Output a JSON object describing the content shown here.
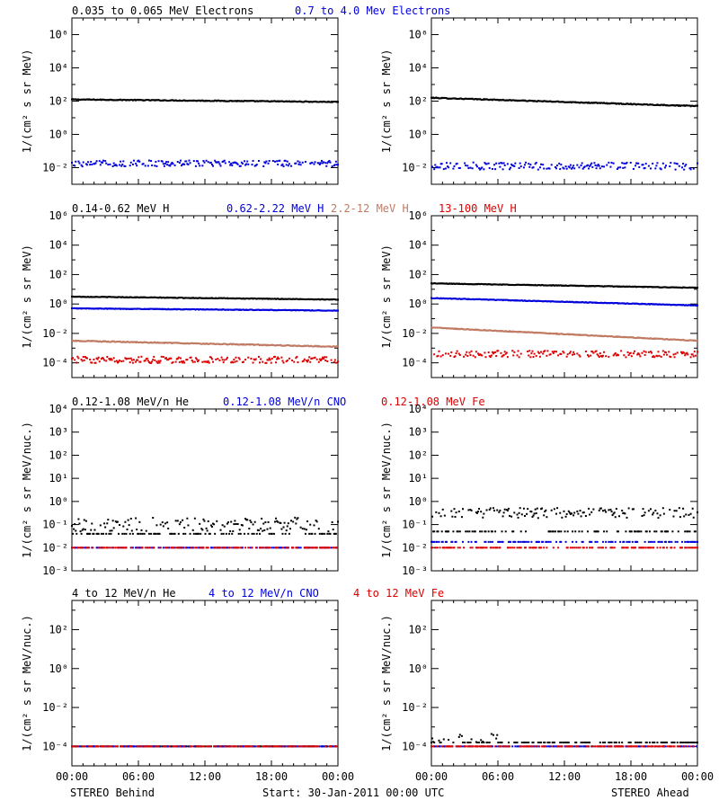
{
  "colors": {
    "black": "#000000",
    "blue": "#0000dd",
    "tan": "#c07a63",
    "red": "#dd0000"
  },
  "footer": {
    "left": "STEREO Behind",
    "center": "Start: 30-Jan-2011 00:00 UTC",
    "right": "STEREO Ahead"
  },
  "x_axis": {
    "unit": "hours",
    "range": [
      0,
      24
    ],
    "tick_values": [
      0,
      6,
      12,
      18,
      24
    ],
    "tick_labels": [
      "00:00",
      "06:00",
      "12:00",
      "18:00",
      "00:00"
    ]
  },
  "rows": [
    {
      "key": "electrons",
      "titles": [
        {
          "text": "0.035 to 0.065 MeV Electrons",
          "color": "black"
        },
        {
          "text": "0.7 to 4.0 Mev Electrons",
          "color": "blue"
        }
      ],
      "ylabel": "1/(cm² s sr MeV)",
      "tick_exponents": [
        -2,
        0,
        2,
        4,
        6
      ],
      "tick_labels": [
        "10⁻²",
        "10⁰",
        "10²",
        "10⁴",
        "10⁶"
      ],
      "ylim_log10": [
        -3.0,
        7.0
      ]
    },
    {
      "key": "protons",
      "titles": [
        {
          "text": "0.14-0.62 MeV H",
          "color": "black"
        },
        {
          "text": "0.62-2.22 MeV H",
          "color": "blue"
        },
        {
          "text": "2.2-12 MeV H",
          "color": "tan"
        },
        {
          "text": "13-100 MeV H",
          "color": "red"
        }
      ],
      "ylabel": "1/(cm² s sr MeV)",
      "tick_exponents": [
        -4,
        -2,
        0,
        2,
        4,
        6
      ],
      "tick_labels": [
        "10⁻⁴",
        "10⁻²",
        "10⁰",
        "10²",
        "10⁴",
        "10⁶"
      ],
      "ylim_log10": [
        -5.0,
        6.0
      ]
    },
    {
      "key": "low_energy_ions",
      "titles": [
        {
          "text": "0.12-1.08 MeV/n He",
          "color": "black"
        },
        {
          "text": "0.12-1.08 MeV/n CNO",
          "color": "blue"
        },
        {
          "text": "0.12-1.08 MeV Fe",
          "color": "red"
        }
      ],
      "ylabel": "1/(cm² s sr MeV/nuc.)",
      "tick_exponents": [
        -3,
        -2,
        -1,
        0,
        1,
        2,
        3,
        4
      ],
      "tick_labels": [
        "10⁻³",
        "10⁻²",
        "10⁻¹",
        "10⁰",
        "10¹",
        "10²",
        "10³",
        "10⁴"
      ],
      "ylim_log10": [
        -3.0,
        4.0
      ]
    },
    {
      "key": "high_energy_ions",
      "titles": [
        {
          "text": "4 to 12 MeV/n He",
          "color": "black"
        },
        {
          "text": "4 to 12 MeV/n CNO",
          "color": "blue"
        },
        {
          "text": "4 to 12 MeV Fe",
          "color": "red"
        }
      ],
      "ylabel": "1/(cm² s sr MeV/nuc.)",
      "tick_exponents": [
        -4,
        -2,
        0,
        2
      ],
      "tick_labels": [
        "10⁻⁴",
        "10⁻²",
        "10⁰",
        "10²"
      ],
      "ylim_log10": [
        -5.0,
        3.5
      ]
    }
  ],
  "chart_data": [
    {
      "type": "scatter",
      "panel": "STEREO Behind",
      "row": "electrons",
      "x_unit": "hours",
      "xlim": [
        0,
        24
      ],
      "series": [
        {
          "name": "0.035 to 0.065 MeV Electrons",
          "color": "black",
          "level": 2.1,
          "trend": -0.15,
          "noise": 0.05,
          "style": "line"
        },
        {
          "name": "0.7 to 4.0 Mev Electrons",
          "color": "blue",
          "level": -1.75,
          "trend": 0.0,
          "noise": 0.18,
          "style": "dots"
        }
      ]
    },
    {
      "type": "scatter",
      "panel": "STEREO Ahead",
      "row": "electrons",
      "x_unit": "hours",
      "xlim": [
        0,
        24
      ],
      "series": [
        {
          "name": "0.035 to 0.065 MeV Electrons",
          "color": "black",
          "level": 2.2,
          "trend": -0.5,
          "noise": 0.05,
          "style": "line"
        },
        {
          "name": "0.7 to 4.0 Mev Electrons",
          "color": "blue",
          "level": -1.9,
          "trend": 0.0,
          "noise": 0.22,
          "style": "dots"
        }
      ]
    },
    {
      "type": "scatter",
      "panel": "STEREO Behind",
      "row": "protons",
      "x_unit": "hours",
      "xlim": [
        0,
        24
      ],
      "series": [
        {
          "name": "0.14-0.62 MeV H",
          "color": "black",
          "level": 0.5,
          "trend": -0.2,
          "noise": 0.04,
          "style": "line"
        },
        {
          "name": "0.62-2.22 MeV H",
          "color": "blue",
          "level": -0.3,
          "trend": -0.15,
          "noise": 0.04,
          "style": "line"
        },
        {
          "name": "2.2-12 MeV H",
          "color": "tan",
          "level": -2.5,
          "trend": -0.4,
          "noise": 0.06,
          "style": "line"
        },
        {
          "name": "13-100 MeV H",
          "color": "red",
          "level": -3.8,
          "trend": 0.0,
          "noise": 0.22,
          "style": "dots"
        }
      ]
    },
    {
      "type": "scatter",
      "panel": "STEREO Ahead",
      "row": "protons",
      "x_unit": "hours",
      "xlim": [
        0,
        24
      ],
      "series": [
        {
          "name": "0.14-0.62 MeV H",
          "color": "black",
          "level": 1.4,
          "trend": -0.3,
          "noise": 0.04,
          "style": "line"
        },
        {
          "name": "0.62-2.22 MeV H",
          "color": "blue",
          "level": 0.4,
          "trend": -0.5,
          "noise": 0.04,
          "style": "line"
        },
        {
          "name": "2.2-12 MeV H",
          "color": "tan",
          "level": -1.6,
          "trend": -0.9,
          "noise": 0.05,
          "style": "line"
        },
        {
          "name": "13-100 MeV H",
          "color": "red",
          "level": -3.4,
          "trend": 0.0,
          "noise": 0.22,
          "style": "dots"
        }
      ]
    },
    {
      "type": "scatter",
      "panel": "STEREO Behind",
      "row": "low_energy_ions",
      "x_unit": "hours",
      "xlim": [
        0,
        24
      ],
      "series": [
        {
          "name": "0.12-1.08 MeV/n He",
          "color": "black",
          "level": -1.0,
          "trend": 0.0,
          "noise": 0.3,
          "style": "quantized",
          "floor": -1.4
        },
        {
          "name": "0.12-1.08 MeV/n CNO",
          "color": "blue",
          "level": -2.0,
          "trend": 0.0,
          "noise": 0.0,
          "style": "floor"
        },
        {
          "name": "0.12-1.08 MeV Fe",
          "color": "red",
          "level": -2.0,
          "trend": 0.0,
          "noise": 0.0,
          "style": "floor"
        }
      ]
    },
    {
      "type": "scatter",
      "panel": "STEREO Ahead",
      "row": "low_energy_ions",
      "x_unit": "hours",
      "xlim": [
        0,
        24
      ],
      "series": [
        {
          "name": "0.12-1.08 MeV/n He",
          "color": "black",
          "level": -0.5,
          "trend": -0.1,
          "noise": 0.22,
          "style": "quantized",
          "floor": -1.3
        },
        {
          "name": "0.12-1.08 MeV/n CNO",
          "color": "blue",
          "level": -1.75,
          "trend": 0.0,
          "noise": 0.0,
          "style": "floor"
        },
        {
          "name": "0.12-1.08 MeV Fe",
          "color": "red",
          "level": -2.0,
          "trend": 0.0,
          "noise": 0.0,
          "style": "floor"
        }
      ]
    },
    {
      "type": "scatter",
      "panel": "STEREO Behind",
      "row": "high_energy_ions",
      "x_unit": "hours",
      "xlim": [
        0,
        24
      ],
      "series": [
        {
          "name": "4 to 12 MeV/n He",
          "color": "black",
          "level": -4.0,
          "trend": 0.0,
          "noise": 0.0,
          "style": "sparse"
        },
        {
          "name": "4 to 12 MeV/n CNO",
          "color": "blue",
          "level": -4.0,
          "trend": 0.0,
          "noise": 0.0,
          "style": "sparse"
        },
        {
          "name": "4 to 12 MeV Fe",
          "color": "red",
          "level": -4.0,
          "trend": 0.0,
          "noise": 0.0,
          "style": "sparse"
        }
      ]
    },
    {
      "type": "scatter",
      "panel": "STEREO Ahead",
      "row": "high_energy_ions",
      "x_unit": "hours",
      "xlim": [
        0,
        24
      ],
      "series": [
        {
          "name": "4 to 12 MeV/n He",
          "color": "black",
          "level": -3.8,
          "trend": 0.0,
          "noise": 0.15,
          "style": "sparse_bumps"
        },
        {
          "name": "4 to 12 MeV/n CNO",
          "color": "blue",
          "level": -4.0,
          "trend": 0.0,
          "noise": 0.0,
          "style": "sparse"
        },
        {
          "name": "4 to 12 MeV Fe",
          "color": "red",
          "level": -4.0,
          "trend": 0.0,
          "noise": 0.0,
          "style": "sparse"
        }
      ]
    }
  ]
}
